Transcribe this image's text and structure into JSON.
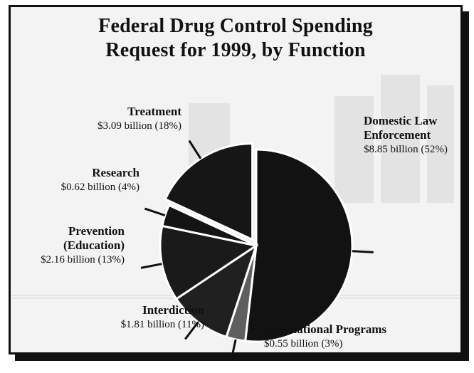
{
  "chart_data": {
    "type": "pie",
    "title": "Federal Drug Control Spending",
    "subtitle": "Request for 1999, by Function",
    "slices": [
      {
        "name": "Domestic Law Enforcement",
        "name_line1": "Domestic Law",
        "name_line2": "Enforcement",
        "value": 8.85,
        "value_label": "$8.85 billion (52%)",
        "color": "#121212"
      },
      {
        "name": "International Programs",
        "value": 0.55,
        "value_label": "$0.55 billion (3%)",
        "color": "#5f5f5f"
      },
      {
        "name": "Interdiction",
        "value": 1.81,
        "value_label": "$1.81 billion (11%)",
        "color": "#202020"
      },
      {
        "name": "Prevention (Education)",
        "name_line1": "Prevention",
        "name_line2": "(Education)",
        "value": 2.16,
        "value_label": "$2.16 billion (13%)",
        "color": "#1a1a1a"
      },
      {
        "name": "Research",
        "value": 0.62,
        "value_label": "$0.62 billion (4%)",
        "color": "#141414"
      },
      {
        "name": "Treatment",
        "value": 3.09,
        "value_label": "$3.09 billion (18%)",
        "color": "#161616"
      }
    ],
    "legend_placement": "callout labels around pie"
  }
}
